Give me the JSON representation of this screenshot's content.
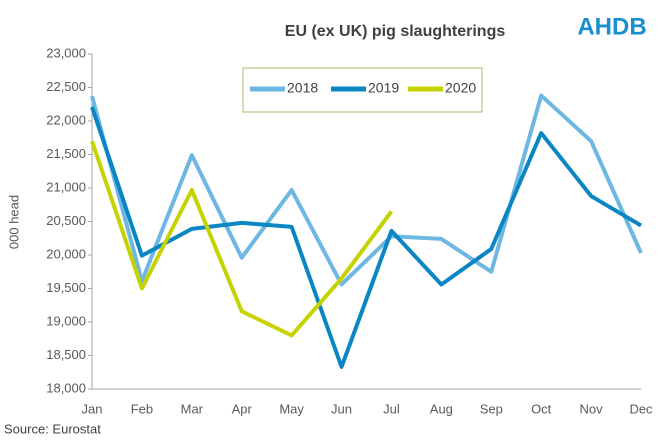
{
  "chart_data": {
    "type": "line",
    "title": "EU (ex UK) pig slaughterings",
    "logo": "AHDB",
    "source": "Source: Eurostat",
    "y_label": "000 head",
    "categories": [
      "Jan",
      "Feb",
      "Mar",
      "Apr",
      "May",
      "Jun",
      "Jul",
      "Aug",
      "Sep",
      "Oct",
      "Nov",
      "Dec"
    ],
    "series": [
      {
        "name": "2018",
        "color": "#6cb8e2",
        "values": [
          22370,
          19610,
          21490,
          19960,
          20970,
          19560,
          20280,
          20240,
          19750,
          22380,
          21700,
          20030
        ]
      },
      {
        "name": "2019",
        "color": "#0a86c3",
        "values": [
          22210,
          19990,
          20390,
          20480,
          20420,
          18330,
          20360,
          19560,
          20090,
          21820,
          20880,
          20440
        ]
      },
      {
        "name": "2020",
        "color": "#c5d300",
        "values": [
          21700,
          19500,
          20970,
          19160,
          18800,
          19650,
          20650,
          null,
          null,
          null,
          null,
          null
        ]
      }
    ],
    "ylim": [
      18000,
      23000
    ],
    "yticks": [
      {
        "value": 18000,
        "label": "18,000"
      },
      {
        "value": 18500,
        "label": "18,500"
      },
      {
        "value": 19000,
        "label": "19,000"
      },
      {
        "value": 19500,
        "label": "19,500"
      },
      {
        "value": 20000,
        "label": "20,000"
      },
      {
        "value": 20500,
        "label": "20,500"
      },
      {
        "value": 21000,
        "label": "21,000"
      },
      {
        "value": 21500,
        "label": "21,500"
      },
      {
        "value": 22000,
        "label": "22,000"
      },
      {
        "value": 22500,
        "label": "22,500"
      },
      {
        "value": 23000,
        "label": "23,000"
      }
    ],
    "grid": false,
    "legend": "top"
  }
}
